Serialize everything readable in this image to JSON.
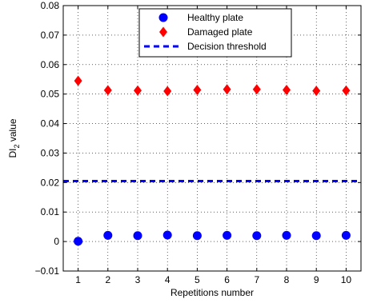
{
  "chart_data": {
    "type": "scatter",
    "xlabel": "Repetitions number",
    "ylabel_main": "DI",
    "ylabel_sub": "2",
    "ylabel_rest": " value",
    "xlim": [
      0.5,
      10.5
    ],
    "ylim": [
      -0.01,
      0.08
    ],
    "xticks": [
      1,
      2,
      3,
      4,
      5,
      6,
      7,
      8,
      9,
      10
    ],
    "yticks": [
      -0.01,
      0,
      0.01,
      0.02,
      0.03,
      0.04,
      0.05,
      0.06,
      0.07,
      0.08
    ],
    "ytick_labels": [
      "−0.01",
      "0",
      "0.01",
      "0.02",
      "0.03",
      "0.04",
      "0.05",
      "0.06",
      "0.07",
      "0.08"
    ],
    "grid": true,
    "legend_position": "top-center",
    "x": [
      1,
      2,
      3,
      4,
      5,
      6,
      7,
      8,
      9,
      10
    ],
    "series": [
      {
        "name": "Healthy plate",
        "marker": "circle",
        "color": "#0000ff",
        "values": [
          0.0001,
          0.0021,
          0.002,
          0.0022,
          0.002,
          0.0021,
          0.002,
          0.0021,
          0.002,
          0.0021
        ]
      },
      {
        "name": "Damaged plate",
        "marker": "diamond",
        "color": "#ff0000",
        "values": [
          0.0545,
          0.0513,
          0.0512,
          0.051,
          0.0514,
          0.0516,
          0.0516,
          0.0514,
          0.0511,
          0.0512
        ]
      },
      {
        "name": "Decision threshold",
        "marker": "dashed-line",
        "color": "#0000ff",
        "values": [
          0.0205,
          0.0205,
          0.0205,
          0.0205,
          0.0205,
          0.0205,
          0.0205,
          0.0205,
          0.0205,
          0.0205
        ]
      }
    ]
  }
}
